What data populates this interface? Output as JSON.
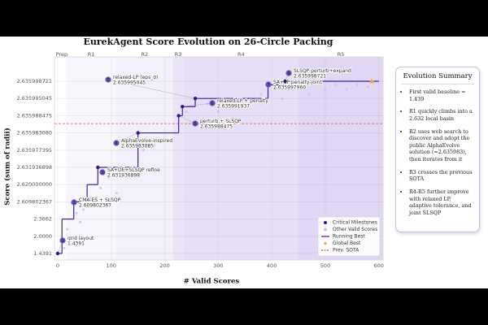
{
  "chart_data": {
    "type": "step",
    "title": "EurekAgent Score Evolution on 26-Circle Packing",
    "x_label": "# Valid Scores",
    "y_label": "Score (sum of radii)",
    "xlim": [
      -6,
      608
    ],
    "xticks": [
      0,
      100,
      200,
      300,
      400,
      500,
      600
    ],
    "yscale": "piecewise",
    "ylim": [
      1.4391,
      2.635998721
    ],
    "yticks": [
      1.4391,
      {
        "value": 2,
        "label": "2.0000"
      },
      2.3662,
      2.609802367,
      {
        "value": 2.62,
        "label": "2.620000000"
      },
      2.631936898,
      2.635977395,
      {
        "value": 2.63598308,
        "label": "2.635983080"
      },
      2.635988475,
      2.635995045,
      2.635998721
    ],
    "phases": {
      "names": [
        "Prep",
        "R1",
        "R2",
        "R3",
        "R4",
        "R5"
      ],
      "starts": [
        0,
        15,
        110,
        215,
        235,
        450
      ],
      "ends": [
        15,
        110,
        215,
        235,
        450,
        608
      ],
      "colors": [
        "#ffffff",
        "#f8f6fd",
        "#f3effb",
        "#ebe4f8",
        "#e7dff7",
        "#e1d7f5"
      ]
    },
    "others": {
      "name": "Other Valid Scores",
      "color": "#c9bfee",
      "x": [
        12,
        18,
        22,
        35,
        42,
        48,
        60,
        66,
        80,
        95,
        110,
        130,
        160,
        180,
        200,
        240,
        280,
        300,
        330,
        350,
        380,
        420,
        440,
        470,
        500,
        520,
        540,
        560,
        580
      ],
      "values": [
        1.62,
        2.15,
        1.85,
        2.45,
        2.3,
        2.5,
        2.612,
        2.605,
        2.618,
        2.625,
        2.615,
        2.628,
        2.63597,
        2.635979,
        2.635981,
        2.63599,
        2.635993,
        2.63599,
        2.635994,
        2.635992,
        2.635996,
        2.635995,
        2.635997,
        2.635996,
        2.635997,
        2.635998,
        2.635997,
        2.635998,
        2.6359975
      ]
    },
    "running_best": {
      "name": "Running Best",
      "color": "#3b1f9e",
      "x": [
        0,
        8,
        30,
        55,
        75,
        150,
        226,
        233,
        257,
        393,
        425,
        600
      ],
      "values": [
        1.4391,
        2.3662,
        2.609802367,
        2.62,
        2.631936898,
        2.635983085,
        2.635988475,
        2.635991937,
        2.635995045,
        2.63599796,
        2.635998721,
        2.635998721
      ]
    },
    "milestones": {
      "name": "Critical Milestones",
      "color": "#2f1a8a",
      "numbers": [
        1,
        2,
        3,
        4,
        5,
        6,
        7,
        8,
        9
      ],
      "labels": [
        "grid layout",
        "CMA-ES + SLSQP",
        "SA+DE+SLSQP refine",
        "AlphaEvolve-inspired",
        "relaxed-LP (eps_σ)",
        "relaxed-LP + penalty",
        "SA+LP penalty-joint",
        "perturb + SLSQP",
        "SLSQP perturb+expand"
      ],
      "x": [
        0,
        30,
        75,
        150,
        257,
        233,
        393,
        226,
        425
      ],
      "values": [
        1.4391,
        2.609802367,
        2.631936898,
        2.635983085,
        2.635995045,
        2.635991937,
        2.63599796,
        2.635988475,
        2.635998721
      ],
      "value_labels": [
        "1.4391",
        "2.609802367",
        "2.631936898",
        "2.635983085",
        "2.635995045",
        "2.635991937",
        "2.635997960",
        "2.635988475",
        "2.635998721"
      ]
    },
    "global_best": {
      "name": "Global Best",
      "color": "#f0a830",
      "x": 587,
      "value": 2.635998721
    },
    "sota": {
      "name": "Prev. SOTA",
      "color": "#d9534f",
      "value": 2.635986
    },
    "legend": "lower right"
  },
  "summary": {
    "title": "Evolution Summary",
    "items": [
      "First valid baseline = 1.439",
      "R1 quickly climbs into a 2.632 local basin",
      "R2 uses web search to discover and adopt the public AlphaEvolve solution (≈2.635983), then iterates from it",
      "R3 crosses the previous SOTA",
      "R4-R5 further improve with relaxed LP, adaptive tolerance, and joint SLSQP"
    ]
  }
}
